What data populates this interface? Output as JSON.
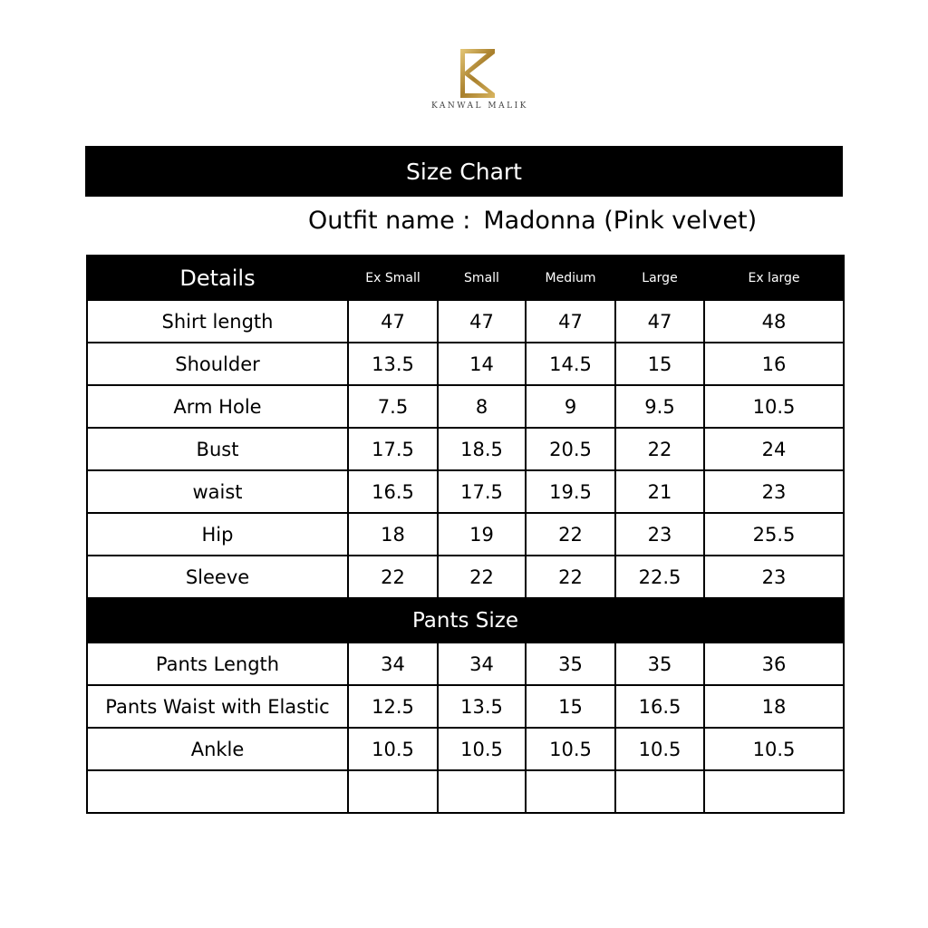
{
  "brand": {
    "name": "KANWAL MALIK",
    "logo_color": "#b8923a"
  },
  "title": "Size Chart",
  "outfit": {
    "label": "Outfit name :",
    "value": "Madonna  (Pink velvet)"
  },
  "columns": [
    "Details",
    "Ex Small",
    "Small",
    "Medium",
    "Large",
    "Ex large"
  ],
  "rows": [
    {
      "label": "Shirt length",
      "values": [
        "47",
        "47",
        "47",
        "47",
        "48"
      ]
    },
    {
      "label": "Shoulder",
      "values": [
        "13.5",
        "14",
        "14.5",
        "15",
        "16"
      ]
    },
    {
      "label": "Arm Hole",
      "values": [
        "7.5",
        "8",
        "9",
        "9.5",
        "10.5"
      ]
    },
    {
      "label": "Bust",
      "values": [
        "17.5",
        "18.5",
        "20.5",
        "22",
        "24"
      ]
    },
    {
      "label": "waist",
      "values": [
        "16.5",
        "17.5",
        "19.5",
        "21",
        "23"
      ]
    },
    {
      "label": "Hip",
      "values": [
        "18",
        "19",
        "22",
        "23",
        "25.5"
      ]
    },
    {
      "label": "Sleeve",
      "values": [
        "22",
        "22",
        "22",
        "22.5",
        "23"
      ]
    }
  ],
  "pants_section": "Pants Size",
  "pants_rows": [
    {
      "label": "Pants Length",
      "values": [
        "34",
        "34",
        "35",
        "35",
        "36"
      ]
    },
    {
      "label": "Pants Waist with Elastic",
      "values": [
        "12.5",
        "13.5",
        "15",
        "16.5",
        "18"
      ]
    },
    {
      "label": "Ankle",
      "values": [
        "10.5",
        "10.5",
        "10.5",
        "10.5",
        "10.5"
      ]
    },
    {
      "label": "",
      "values": [
        "",
        "",
        "",
        "",
        ""
      ]
    }
  ]
}
